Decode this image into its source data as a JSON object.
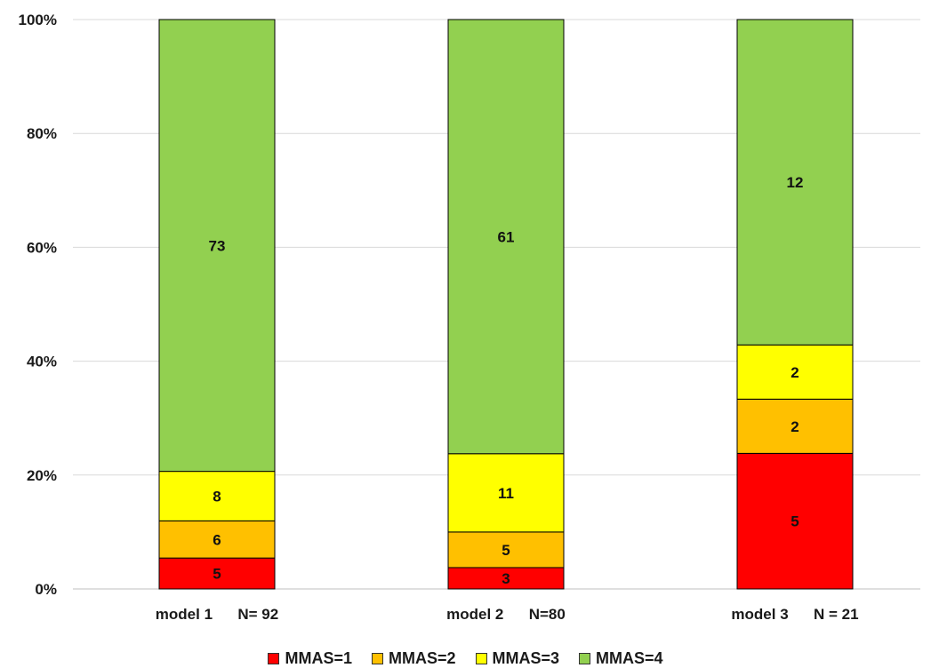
{
  "chart_data": {
    "type": "bar",
    "stacked": "percent",
    "categories": [
      "model 1      N= 92",
      "model 2      N=80",
      "model 3      N = 21"
    ],
    "series": [
      {
        "name": "MMAS=1",
        "color": "#ff0000",
        "values": [
          5,
          3,
          5
        ]
      },
      {
        "name": "MMAS=2",
        "color": "#ffc000",
        "values": [
          6,
          5,
          2
        ]
      },
      {
        "name": "MMAS=3",
        "color": "#ffff00",
        "values": [
          8,
          11,
          2
        ]
      },
      {
        "name": "MMAS=4",
        "color": "#92d050",
        "values": [
          73,
          61,
          12
        ]
      }
    ],
    "yticks": [
      "0%",
      "20%",
      "40%",
      "60%",
      "80%",
      "100%"
    ],
    "ylim": [
      0,
      100
    ],
    "grid": true,
    "legend_position": "bottom"
  }
}
